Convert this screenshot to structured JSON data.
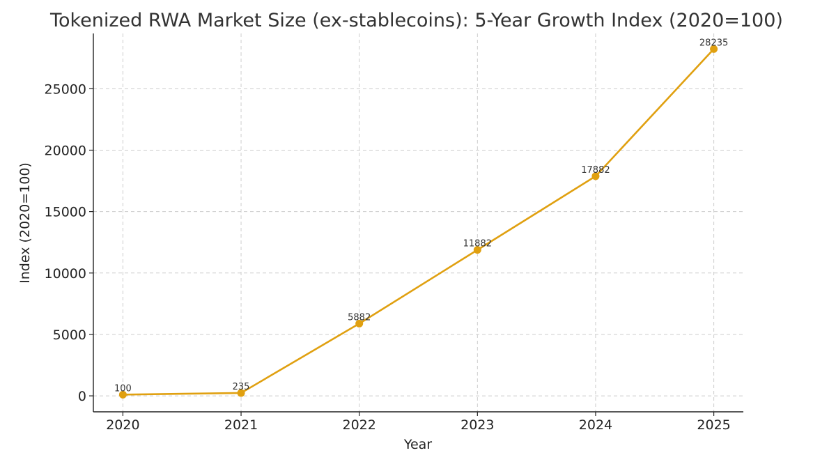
{
  "chart_data": {
    "type": "line",
    "title": "Tokenized RWA Market Size (ex-stablecoins): 5-Year Growth Index (2020=100)",
    "xlabel": "Year",
    "ylabel": "Index (2020=100)",
    "x": [
      2020,
      2021,
      2022,
      2023,
      2024,
      2025
    ],
    "x_tick_labels": [
      "2020",
      "2021",
      "2022",
      "2023",
      "2024",
      "2025"
    ],
    "y_ticks": [
      0,
      5000,
      10000,
      15000,
      20000,
      25000
    ],
    "y_tick_labels": [
      "0",
      "5000",
      "10000",
      "15000",
      "20000",
      "25000"
    ],
    "ylim": [
      -1300,
      29500
    ],
    "xlim": [
      2019.75,
      2025.25
    ],
    "grid": true,
    "series": [
      {
        "values": [
          100,
          235,
          5882,
          11882,
          17882,
          28235
        ],
        "data_labels": [
          "100",
          "235",
          "5882",
          "11882",
          "17882",
          "28235"
        ],
        "color": "#E0A010",
        "marker": "circle"
      }
    ]
  }
}
